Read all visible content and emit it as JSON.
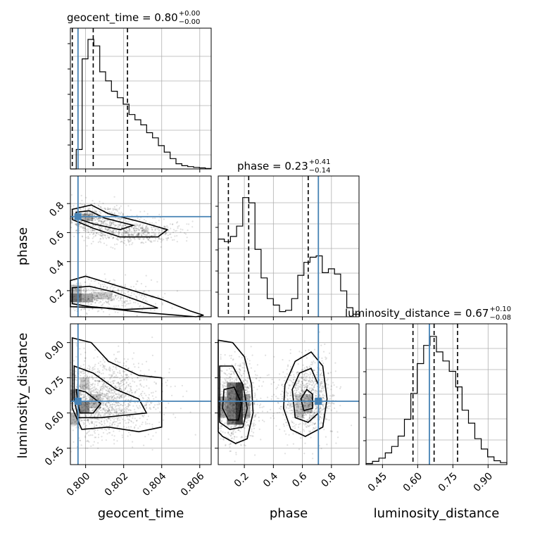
{
  "chart_data": {
    "type": "corner",
    "parameters": [
      "geocent_time",
      "phase",
      "luminosity_distance"
    ],
    "truth": {
      "geocent_time": 0.7996,
      "phase": 0.71,
      "luminosity_distance": 0.65
    },
    "titles": [
      {
        "name": "geocent_time",
        "text": "geocent_time = 0.80",
        "plus": "+0.00",
        "minus": "−0.00"
      },
      {
        "name": "phase",
        "text": "phase = 0.23",
        "plus": "+0.41",
        "minus": "−0.14"
      },
      {
        "name": "luminosity_distance",
        "text": "luminosity_distance = 0.67",
        "plus": "+0.10",
        "minus": "−0.08"
      }
    ],
    "axis_labels": {
      "x": [
        "geocent_time",
        "phase",
        "luminosity_distance"
      ],
      "y": [
        "phase",
        "luminosity_distance"
      ]
    },
    "ranges": {
      "geocent_time": [
        0.7992,
        0.8066
      ],
      "phase": [
        0.02,
        0.99
      ],
      "luminosity_distance": [
        0.38,
        0.98
      ]
    },
    "ticks": {
      "geocent_time": {
        "values": [
          0.8,
          0.802,
          0.804,
          0.806
        ],
        "labels": [
          "0.800",
          "0.802",
          "0.804",
          "0.806"
        ]
      },
      "phase_x": {
        "values": [
          0.2,
          0.4,
          0.6,
          0.8
        ],
        "labels": [
          "0.2",
          "0.4",
          "0.6",
          "0.8"
        ]
      },
      "phase_y": {
        "values": [
          0.2,
          0.4,
          0.6,
          0.8
        ],
        "labels": [
          "0.2",
          "0.4",
          "0.6",
          "0.8"
        ]
      },
      "luminosity_distance": {
        "values": [
          0.45,
          0.6,
          0.75,
          0.9
        ],
        "labels": [
          "0.45",
          "0.60",
          "0.75",
          "0.90"
        ]
      }
    },
    "quantiles": {
      "geocent_time": [
        0.7993,
        0.8004,
        0.8022
      ],
      "phase": [
        0.09,
        0.23,
        0.64
      ],
      "luminosity_distance": [
        0.58,
        0.67,
        0.77
      ]
    },
    "histograms": {
      "geocent_time": [
        0.0,
        0.15,
        0.85,
        1.0,
        0.95,
        0.75,
        0.68,
        0.6,
        0.55,
        0.5,
        0.42,
        0.38,
        0.34,
        0.28,
        0.24,
        0.18,
        0.13,
        0.08,
        0.04,
        0.025,
        0.018,
        0.012,
        0.008,
        0.004
      ],
      "phase": [
        0.6,
        0.58,
        0.62,
        0.7,
        0.92,
        0.88,
        0.52,
        0.3,
        0.14,
        0.09,
        0.04,
        0.05,
        0.14,
        0.32,
        0.42,
        0.46,
        0.47,
        0.34,
        0.37,
        0.33,
        0.2,
        0.07,
        0.02
      ],
      "luminosity_distance": [
        0.008,
        0.025,
        0.05,
        0.09,
        0.14,
        0.22,
        0.35,
        0.55,
        0.78,
        0.92,
        0.99,
        0.87,
        0.8,
        0.72,
        0.6,
        0.42,
        0.32,
        0.2,
        0.12,
        0.06,
        0.03,
        0.015
      ]
    },
    "grid": true,
    "colors": {
      "truth": "#4682b4",
      "hist": "#000000",
      "contour": "#000000",
      "grid": "#b0b0b0"
    }
  }
}
